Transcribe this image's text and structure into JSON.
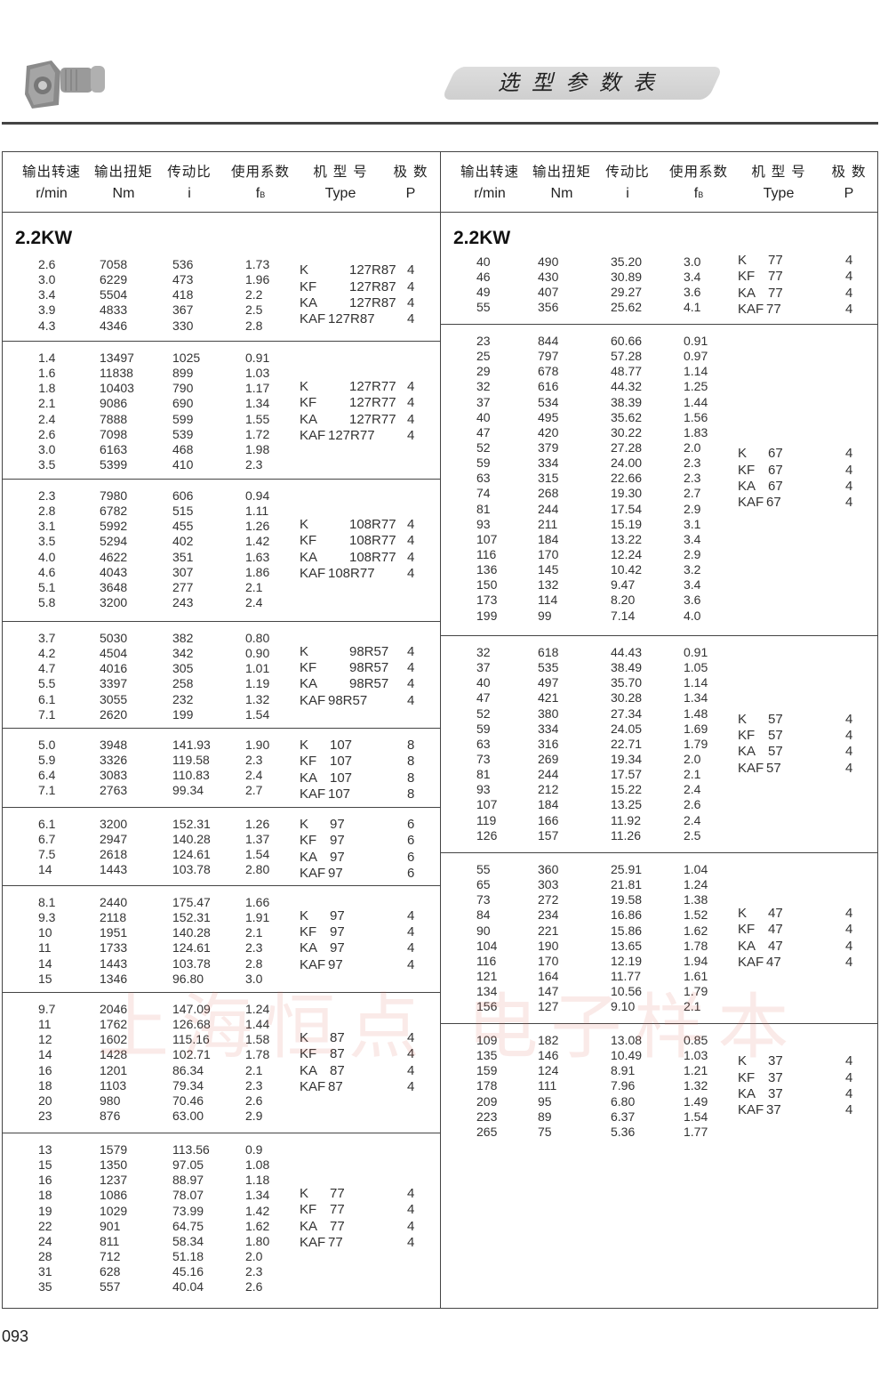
{
  "header": {
    "title": "选型参数表",
    "product_image": "k-series-helical-bevel-gear-motor"
  },
  "columns": [
    {
      "zh": "输出转速",
      "en": "r/min"
    },
    {
      "zh": "输出扭矩",
      "en": "Nm"
    },
    {
      "zh": "传动比",
      "en": "i"
    },
    {
      "zh": "使用系数",
      "en": "f",
      "sub": "B"
    },
    {
      "zh": "机 型 号",
      "en": "Type"
    },
    {
      "zh": "极  数",
      "en": "P"
    }
  ],
  "power_label": "2.2KW",
  "left_groups": [
    {
      "rows": [
        [
          "2.6",
          "7058",
          "536",
          "1.73"
        ],
        [
          "3.0",
          "6229",
          "473",
          "1.96"
        ],
        [
          "3.4",
          "5504",
          "418",
          "2.2"
        ],
        [
          "3.9",
          "4833",
          "367",
          "2.5"
        ],
        [
          "4.3",
          "4346",
          "330",
          "2.8"
        ]
      ],
      "types": [
        [
          "K",
          "127R87",
          "4"
        ],
        [
          "KF",
          "127R87",
          "4"
        ],
        [
          "KA",
          "127R87",
          "4"
        ],
        [
          "KAF",
          "127R87",
          "4"
        ]
      ]
    },
    {
      "rows": [
        [
          "1.4",
          "13497",
          "1025",
          "0.91"
        ],
        [
          "1.6",
          "11838",
          "899",
          "1.03"
        ],
        [
          "1.8",
          "10403",
          "790",
          "1.17"
        ],
        [
          "2.1",
          "9086",
          "690",
          "1.34"
        ],
        [
          "2.4",
          "7888",
          "599",
          "1.55"
        ],
        [
          "2.6",
          "7098",
          "539",
          "1.72"
        ],
        [
          "3.0",
          "6163",
          "468",
          "1.98"
        ],
        [
          "3.5",
          "5399",
          "410",
          "2.3"
        ]
      ],
      "types": [
        [
          "K",
          "127R77",
          "4"
        ],
        [
          "KF",
          "127R77",
          "4"
        ],
        [
          "KA",
          "127R77",
          "4"
        ],
        [
          "KAF",
          "127R77",
          "4"
        ]
      ]
    },
    {
      "rows": [
        [
          "2.3",
          "7980",
          "606",
          "0.94"
        ],
        [
          "2.8",
          "6782",
          "515",
          "1.11"
        ],
        [
          "3.1",
          "5992",
          "455",
          "1.26"
        ],
        [
          "3.5",
          "5294",
          "402",
          "1.42"
        ],
        [
          "4.0",
          "4622",
          "351",
          "1.63"
        ],
        [
          "4.6",
          "4043",
          "307",
          "1.86"
        ],
        [
          "5.1",
          "3648",
          "277",
          "2.1"
        ],
        [
          "5.8",
          "3200",
          "243",
          "2.4"
        ]
      ],
      "types": [
        [
          "K",
          "108R77",
          "4"
        ],
        [
          "KF",
          "108R77",
          "4"
        ],
        [
          "KA",
          "108R77",
          "4"
        ],
        [
          "KAF",
          "108R77",
          "4"
        ]
      ]
    },
    {
      "rows": [
        [
          "3.7",
          "5030",
          "382",
          "0.80"
        ],
        [
          "4.2",
          "4504",
          "342",
          "0.90"
        ],
        [
          "4.7",
          "4016",
          "305",
          "1.01"
        ],
        [
          "5.5",
          "3397",
          "258",
          "1.19"
        ],
        [
          "6.1",
          "3055",
          "232",
          "1.32"
        ],
        [
          "7.1",
          "2620",
          "199",
          "1.54"
        ]
      ],
      "types": [
        [
          "K",
          "98R57",
          "4"
        ],
        [
          "KF",
          "98R57",
          "4"
        ],
        [
          "KA",
          "98R57",
          "4"
        ],
        [
          "KAF",
          "98R57",
          "4"
        ]
      ]
    },
    {
      "rows": [
        [
          "5.0",
          "3948",
          "141.93",
          "1.90"
        ],
        [
          "5.9",
          "3326",
          "119.58",
          "2.3"
        ],
        [
          "6.4",
          "3083",
          "110.83",
          "2.4"
        ],
        [
          "7.1",
          "2763",
          "99.34",
          "2.7"
        ]
      ],
      "types": [
        [
          "K",
          "107",
          "8"
        ],
        [
          "KF",
          "107",
          "8"
        ],
        [
          "KA",
          "107",
          "8"
        ],
        [
          "KAF",
          "107",
          "8"
        ]
      ]
    },
    {
      "rows": [
        [
          "6.1",
          "3200",
          "152.31",
          "1.26"
        ],
        [
          "6.7",
          "2947",
          "140.28",
          "1.37"
        ],
        [
          "7.5",
          "2618",
          "124.61",
          "1.54"
        ],
        [
          "14",
          "1443",
          "103.78",
          "2.80"
        ]
      ],
      "types": [
        [
          "K",
          "97",
          "6"
        ],
        [
          "KF",
          "97",
          "6"
        ],
        [
          "KA",
          "97",
          "6"
        ],
        [
          "KAF",
          "97",
          "6"
        ]
      ]
    },
    {
      "rows": [
        [
          "8.1",
          "2440",
          "175.47",
          "1.66"
        ],
        [
          "9.3",
          "2118",
          "152.31",
          "1.91"
        ],
        [
          "10",
          "1951",
          "140.28",
          "2.1"
        ],
        [
          "11",
          "1733",
          "124.61",
          "2.3"
        ],
        [
          "14",
          "1443",
          "103.78",
          "2.8"
        ],
        [
          "15",
          "1346",
          "96.80",
          "3.0"
        ]
      ],
      "types": [
        [
          "K",
          "97",
          "4"
        ],
        [
          "KF",
          "97",
          "4"
        ],
        [
          "KA",
          "97",
          "4"
        ],
        [
          "KAF",
          "97",
          "4"
        ]
      ]
    },
    {
      "rows": [
        [
          "9.7",
          "2046",
          "147.09",
          "1.24"
        ],
        [
          "11",
          "1762",
          "126.68",
          "1.44"
        ],
        [
          "12",
          "1602",
          "115.16",
          "1.58"
        ],
        [
          "14",
          "1428",
          "102.71",
          "1.78"
        ],
        [
          "16",
          "1201",
          "86.34",
          "2.1"
        ],
        [
          "18",
          "1103",
          "79.34",
          "2.3"
        ],
        [
          "20",
          "980",
          "70.46",
          "2.6"
        ],
        [
          "23",
          "876",
          "63.00",
          "2.9"
        ]
      ],
      "types": [
        [
          "K",
          "87",
          "4"
        ],
        [
          "KF",
          "87",
          "4"
        ],
        [
          "KA",
          "87",
          "4"
        ],
        [
          "KAF",
          "87",
          "4"
        ]
      ]
    },
    {
      "rows": [
        [
          "13",
          "1579",
          "113.56",
          "0.9"
        ],
        [
          "15",
          "1350",
          "97.05",
          "1.08"
        ],
        [
          "16",
          "1237",
          "88.97",
          "1.18"
        ],
        [
          "18",
          "1086",
          "78.07",
          "1.34"
        ],
        [
          "19",
          "1029",
          "73.99",
          "1.42"
        ],
        [
          "22",
          "901",
          "64.75",
          "1.62"
        ],
        [
          "24",
          "811",
          "58.34",
          "1.80"
        ],
        [
          "28",
          "712",
          "51.18",
          "2.0"
        ],
        [
          "31",
          "628",
          "45.16",
          "2.3"
        ],
        [
          "35",
          "557",
          "40.04",
          "2.6"
        ]
      ],
      "types": [
        [
          "K",
          "77",
          "4"
        ],
        [
          "KF",
          "77",
          "4"
        ],
        [
          "KA",
          "77",
          "4"
        ],
        [
          "KAF",
          "77",
          "4"
        ]
      ]
    }
  ],
  "right_groups": [
    {
      "rows": [
        [
          "40",
          "490",
          "35.20",
          "3.0"
        ],
        [
          "46",
          "430",
          "30.89",
          "3.4"
        ],
        [
          "49",
          "407",
          "29.27",
          "3.6"
        ],
        [
          "55",
          "356",
          "25.62",
          "4.1"
        ]
      ],
      "types": [
        [
          "K",
          "77",
          "4"
        ],
        [
          "KF",
          "77",
          "4"
        ],
        [
          "KA",
          "77",
          "4"
        ],
        [
          "KAF",
          "77",
          "4"
        ]
      ]
    },
    {
      "rows": [
        [
          "23",
          "844",
          "60.66",
          "0.91"
        ],
        [
          "25",
          "797",
          "57.28",
          "0.97"
        ],
        [
          "29",
          "678",
          "48.77",
          "1.14"
        ],
        [
          "32",
          "616",
          "44.32",
          "1.25"
        ],
        [
          "37",
          "534",
          "38.39",
          "1.44"
        ],
        [
          "40",
          "495",
          "35.62",
          "1.56"
        ],
        [
          "47",
          "420",
          "30.22",
          "1.83"
        ],
        [
          "52",
          "379",
          "27.28",
          "2.0"
        ],
        [
          "59",
          "334",
          "24.00",
          "2.3"
        ],
        [
          "63",
          "315",
          "22.66",
          "2.3"
        ],
        [
          "74",
          "268",
          "19.30",
          "2.7"
        ],
        [
          "81",
          "244",
          "17.54",
          "2.9"
        ],
        [
          "93",
          "211",
          "15.19",
          "3.1"
        ],
        [
          "107",
          "184",
          "13.22",
          "3.4"
        ],
        [
          "116",
          "170",
          "12.24",
          "2.9"
        ],
        [
          "136",
          "145",
          "10.42",
          "3.2"
        ],
        [
          "150",
          "132",
          "9.47",
          "3.4"
        ],
        [
          "173",
          "114",
          "8.20",
          "3.6"
        ],
        [
          "199",
          "99",
          "7.14",
          "4.0"
        ]
      ],
      "types": [
        [
          "K",
          "67",
          "4"
        ],
        [
          "KF",
          "67",
          "4"
        ],
        [
          "KA",
          "67",
          "4"
        ],
        [
          "KAF",
          "67",
          "4"
        ]
      ]
    },
    {
      "rows": [
        [
          "32",
          "618",
          "44.43",
          "0.91"
        ],
        [
          "37",
          "535",
          "38.49",
          "1.05"
        ],
        [
          "40",
          "497",
          "35.70",
          "1.14"
        ],
        [
          "47",
          "421",
          "30.28",
          "1.34"
        ],
        [
          "52",
          "380",
          "27.34",
          "1.48"
        ],
        [
          "59",
          "334",
          "24.05",
          "1.69"
        ],
        [
          "63",
          "316",
          "22.71",
          "1.79"
        ],
        [
          "73",
          "269",
          "19.34",
          "2.0"
        ],
        [
          "81",
          "244",
          "17.57",
          "2.1"
        ],
        [
          "93",
          "212",
          "15.22",
          "2.4"
        ],
        [
          "107",
          "184",
          "13.25",
          "2.6"
        ],
        [
          "119",
          "166",
          "11.92",
          "2.4"
        ],
        [
          "126",
          "157",
          "11.26",
          "2.5"
        ]
      ],
      "types": [
        [
          "K",
          "57",
          "4"
        ],
        [
          "KF",
          "57",
          "4"
        ],
        [
          "KA",
          "57",
          "4"
        ],
        [
          "KAF",
          "57",
          "4"
        ]
      ]
    },
    {
      "rows": [
        [
          "55",
          "360",
          "25.91",
          "1.04"
        ],
        [
          "65",
          "303",
          "21.81",
          "1.24"
        ],
        [
          "73",
          "272",
          "19.58",
          "1.38"
        ],
        [
          "84",
          "234",
          "16.86",
          "1.52"
        ],
        [
          "90",
          "221",
          "15.86",
          "1.62"
        ],
        [
          "104",
          "190",
          "13.65",
          "1.78"
        ],
        [
          "116",
          "170",
          "12.19",
          "1.94"
        ],
        [
          "121",
          "164",
          "11.77",
          "1.61"
        ],
        [
          "134",
          "147",
          "10.56",
          "1.79"
        ],
        [
          "156",
          "127",
          "9.10",
          "2.1"
        ]
      ],
      "types": [
        [
          "K",
          "47",
          "4"
        ],
        [
          "KF",
          "47",
          "4"
        ],
        [
          "KA",
          "47",
          "4"
        ],
        [
          "KAF",
          "47",
          "4"
        ]
      ]
    },
    {
      "rows": [
        [
          "109",
          "182",
          "13.08",
          "0.85"
        ],
        [
          "135",
          "146",
          "10.49",
          "1.03"
        ],
        [
          "159",
          "124",
          "8.91",
          "1.21"
        ],
        [
          "178",
          "111",
          "7.96",
          "1.32"
        ],
        [
          "209",
          "95",
          "6.80",
          "1.49"
        ],
        [
          "223",
          "89",
          "6.37",
          "1.54"
        ],
        [
          "265",
          "75",
          "5.36",
          "1.77"
        ]
      ],
      "types": [
        [
          "K",
          "37",
          "4"
        ],
        [
          "KF",
          "37",
          "4"
        ],
        [
          "KA",
          "37",
          "4"
        ],
        [
          "KAF",
          "37",
          "4"
        ]
      ]
    }
  ],
  "watermark": "上海恒点 电子样本",
  "page_number": "093"
}
